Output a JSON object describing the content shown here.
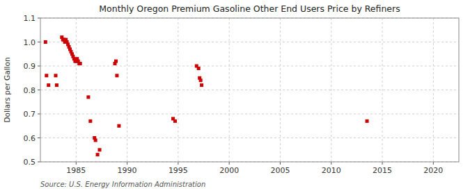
{
  "chart_data": {
    "type": "scatter",
    "title": "Monthly Oregon Premium Gasoline Other End Users Price by Refiners",
    "y_label": "Dollars per Gallon",
    "annotations": [
      "Source: U.S. Energy Information Administration"
    ],
    "x": [
      1982.0,
      1982.1,
      1982.3,
      1983.0,
      1983.1,
      1983.6,
      1983.7,
      1983.8,
      1983.9,
      1984.0,
      1984.1,
      1984.2,
      1984.3,
      1984.4,
      1984.5,
      1984.6,
      1984.7,
      1984.8,
      1984.9,
      1985.0,
      1985.1,
      1985.2,
      1985.3,
      1985.4,
      1986.2,
      1986.4,
      1986.8,
      1986.9,
      1987.1,
      1987.3,
      1988.8,
      1988.9,
      1989.0,
      1989.2,
      1994.5,
      1994.7,
      1996.8,
      1997.0,
      1997.1,
      1997.2,
      1997.3,
      2013.5
    ],
    "values": [
      1.0,
      0.86,
      0.82,
      0.86,
      0.82,
      1.02,
      1.01,
      1.01,
      1.0,
      1.01,
      1.0,
      0.99,
      0.98,
      0.97,
      0.96,
      0.95,
      0.94,
      0.93,
      0.92,
      0.92,
      0.93,
      0.92,
      0.91,
      0.91,
      0.77,
      0.67,
      0.6,
      0.59,
      0.53,
      0.55,
      0.91,
      0.92,
      0.86,
      0.65,
      0.68,
      0.67,
      0.9,
      0.89,
      0.85,
      0.84,
      0.82,
      0.67
    ],
    "color": "#cc0000",
    "marker": "square",
    "xlim": [
      1981.5,
      2022.5
    ],
    "ylim": [
      0.5,
      1.1
    ],
    "xticks": [
      1985,
      1990,
      1995,
      2000,
      2005,
      2010,
      2015,
      2020
    ],
    "yticks": [
      0.5,
      0.6,
      0.7,
      0.8,
      0.9,
      {
        "value": 1.0,
        "label": "1.0"
      },
      1.1
    ],
    "grid": true
  }
}
